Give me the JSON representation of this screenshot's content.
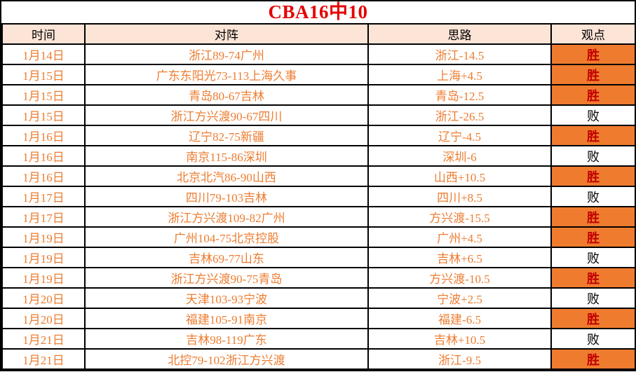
{
  "title": "CBA16中10",
  "columns": {
    "time": "时间",
    "matchup": "对阵",
    "idea": "思路",
    "viewpoint": "观点"
  },
  "result_labels": {
    "win": "胜",
    "loss": "败"
  },
  "colors": {
    "title_red": "#e60000",
    "header_bg": "#fce4d6",
    "row_text_orange": "#ed7d31",
    "win_bg": "#ef7b2e",
    "win_text": "#c00000",
    "loss_text": "#000000",
    "border": "#000000"
  },
  "rows": [
    {
      "date": "1月14日",
      "matchup": "浙江89-74广州",
      "idea": "浙江-14.5",
      "result": "胜",
      "win": true
    },
    {
      "date": "1月15日",
      "matchup": "广东东阳光73-113上海久事",
      "idea": "上海+4.5",
      "result": "胜",
      "win": true
    },
    {
      "date": "1月15日",
      "matchup": "青岛80-67吉林",
      "idea": "青岛-12.5",
      "result": "胜",
      "win": true
    },
    {
      "date": "1月15日",
      "matchup": "浙江方兴渡90-67四川",
      "idea": "浙江-26.5",
      "result": "败",
      "win": false
    },
    {
      "date": "1月16日",
      "matchup": "辽宁82-75新疆",
      "idea": "辽宁-4.5",
      "result": "胜",
      "win": true
    },
    {
      "date": "1月16日",
      "matchup": "南京115-86深圳",
      "idea": "深圳-6",
      "result": "败",
      "win": false
    },
    {
      "date": "1月16日",
      "matchup": "北京北汽86-90山西",
      "idea": "山西+10.5",
      "result": "胜",
      "win": true
    },
    {
      "date": "1月17日",
      "matchup": "四川79-103吉林",
      "idea": "四川+8.5",
      "result": "败",
      "win": false
    },
    {
      "date": "1月17日",
      "matchup": "浙江方兴渡109-82广州",
      "idea": "方兴渡-15.5",
      "result": "胜",
      "win": true
    },
    {
      "date": "1月19日",
      "matchup": "广州104-75北京控股",
      "idea": "广州+4.5",
      "result": "胜",
      "win": true
    },
    {
      "date": "1月19日",
      "matchup": "吉林69-77山东",
      "idea": "吉林+6.5",
      "result": "败",
      "win": false
    },
    {
      "date": "1月19日",
      "matchup": "浙江方兴渡90-75青岛",
      "idea": "方兴渡-10.5",
      "result": "胜",
      "win": true
    },
    {
      "date": "1月20日",
      "matchup": "天津103-93宁波",
      "idea": "宁波+2.5",
      "result": "败",
      "win": false
    },
    {
      "date": "1月20日",
      "matchup": "福建105-91南京",
      "idea": "福建-6.5",
      "result": "胜",
      "win": true
    },
    {
      "date": "1月21日",
      "matchup": "吉林98-119广东",
      "idea": "吉林+10.5",
      "result": "败",
      "win": false
    },
    {
      "date": "1月21日",
      "matchup": "北控79-102浙江方兴渡",
      "idea": "浙江-9.5",
      "result": "胜",
      "win": true
    }
  ]
}
